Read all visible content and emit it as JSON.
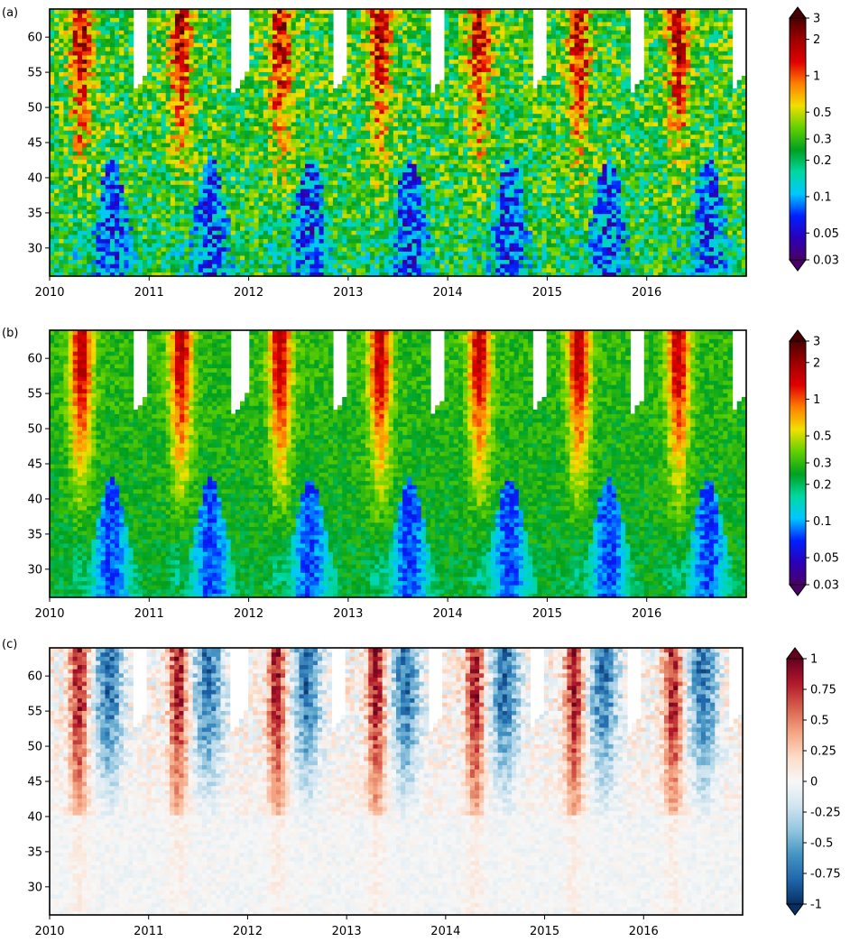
{
  "chart_data": [
    {
      "type": "heatmap",
      "panel_label": "(a)",
      "x_ticks": [
        "2010",
        "2011",
        "2012",
        "2013",
        "2014",
        "2015",
        "2016"
      ],
      "x_range": [
        2010,
        2017
      ],
      "y_ticks": [
        30,
        35,
        40,
        45,
        50,
        55,
        60
      ],
      "y_range": [
        26,
        64
      ],
      "colorbar": {
        "scale": "log",
        "range": [
          0.03,
          3
        ],
        "ticks": [
          "0.03",
          "0.05",
          "0.1",
          "0.2",
          "0.3",
          "0.5",
          "1",
          "2",
          "3"
        ],
        "extend": "both",
        "colors": [
          "#4a0066",
          "#2a00b8",
          "#0020ff",
          "#00c8ff",
          "#00d8a0",
          "#00a020",
          "#60d000",
          "#f0e000",
          "#ff8000",
          "#e00000",
          "#a00000",
          "#4a0000"
        ]
      },
      "description_of_pattern": "Seasonal cycle: low values (blue, ~0.05-0.1) at 30-40 each mid-year, higher values (orange/red, ~0.5-1.5) above 45 in the first half of each year; blank gaps near the top between years"
    },
    {
      "type": "heatmap",
      "panel_label": "(b)",
      "x_ticks": [
        "2010",
        "2011",
        "2012",
        "2013",
        "2014",
        "2015",
        "2016"
      ],
      "x_range": [
        2010,
        2017
      ],
      "y_ticks": [
        30,
        35,
        40,
        45,
        50,
        55,
        60
      ],
      "y_range": [
        26,
        64
      ],
      "colorbar": {
        "scale": "log",
        "range": [
          0.03,
          3
        ],
        "ticks": [
          "0.03",
          "0.05",
          "0.1",
          "0.2",
          "0.3",
          "0.5",
          "1",
          "2",
          "3"
        ],
        "extend": "both",
        "colors": [
          "#4a0066",
          "#2a00b8",
          "#0020ff",
          "#00c8ff",
          "#00d8a0",
          "#00a020",
          "#60d000",
          "#f0e000",
          "#ff8000",
          "#e00000",
          "#a00000",
          "#4a0000"
        ]
      }
    },
    {
      "type": "heatmap",
      "panel_label": "(c)",
      "x_ticks": [
        "2010",
        "2011",
        "2012",
        "2013",
        "2014",
        "2015",
        "2016"
      ],
      "x_range": [
        2010,
        2017
      ],
      "y_ticks": [
        30,
        35,
        40,
        45,
        50,
        55,
        60
      ],
      "y_range": [
        26,
        64
      ],
      "colorbar": {
        "scale": "linear",
        "range": [
          -1,
          1
        ],
        "ticks": [
          "-1",
          "-0.75",
          "-0.5",
          "-0.25",
          "0",
          "0.25",
          "0.5",
          "0.75",
          "1"
        ],
        "extend": "both",
        "colors": [
          "#053061",
          "#2166ac",
          "#4393c3",
          "#92c5de",
          "#d1e5f0",
          "#f7f7f7",
          "#fddbc7",
          "#f4a582",
          "#d6604d",
          "#b2182b",
          "#67001f"
        ]
      }
    }
  ]
}
